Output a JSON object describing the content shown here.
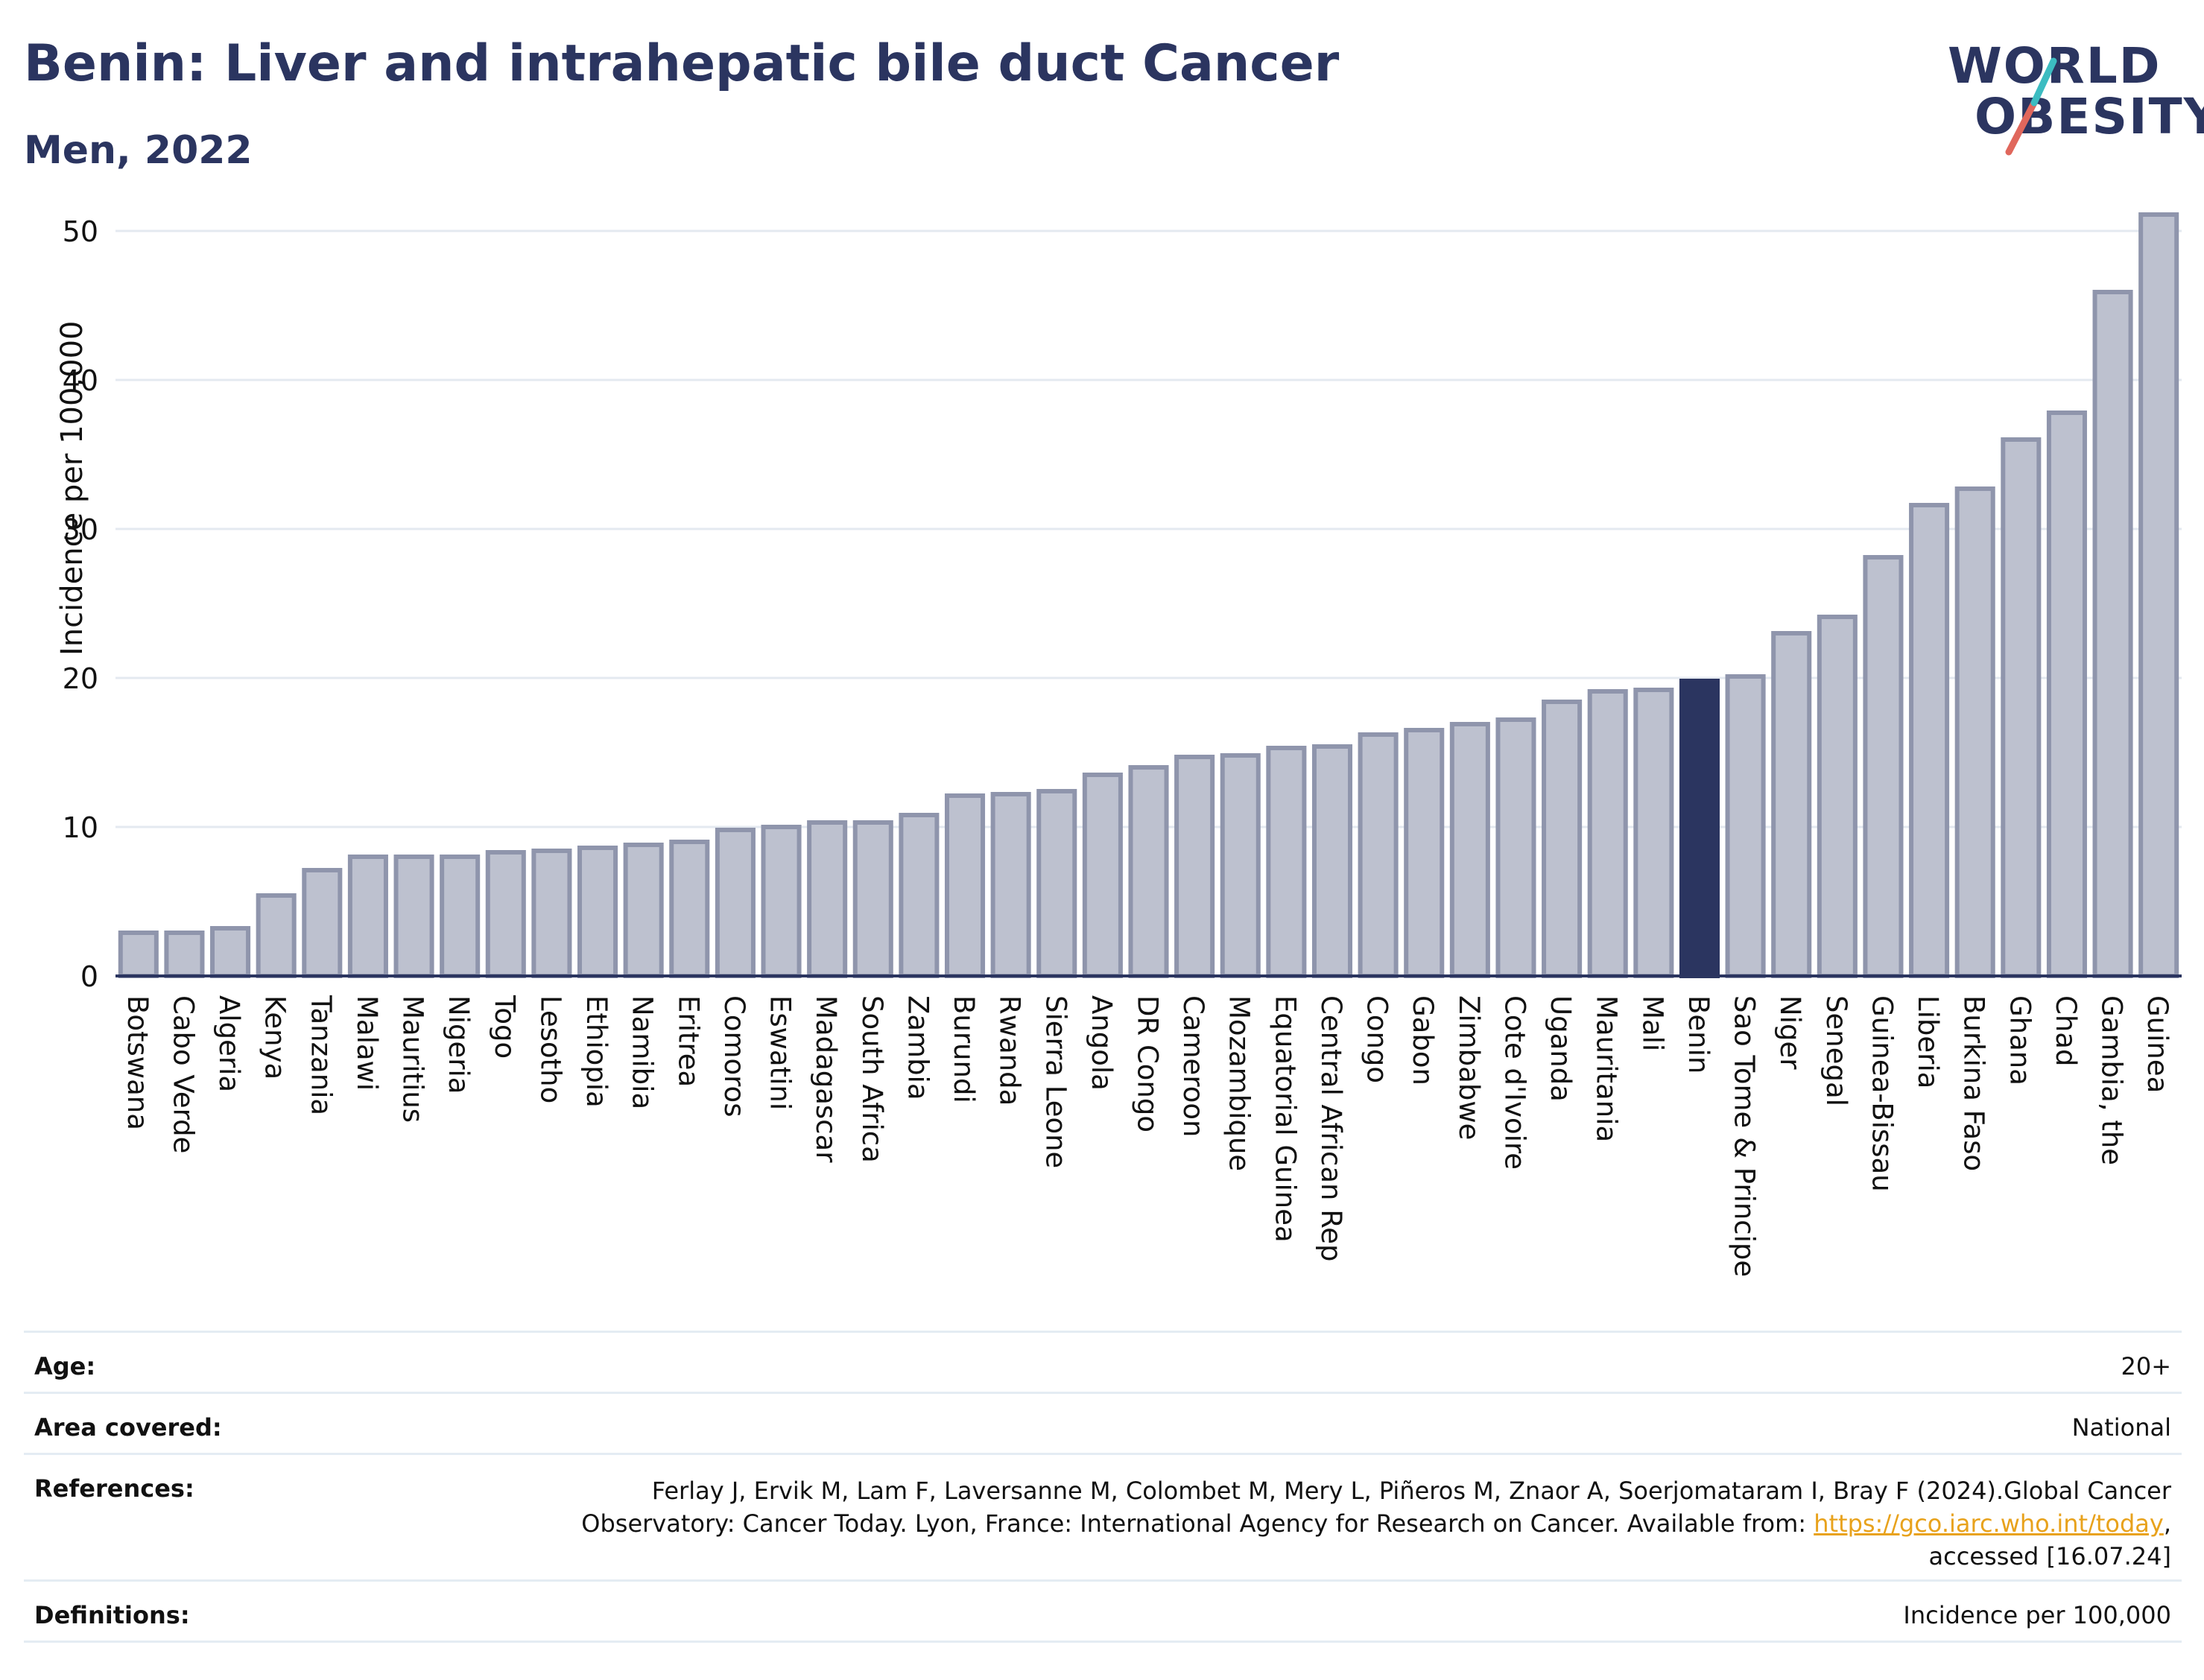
{
  "header": {
    "title": "Benin: Liver and intrahepatic bile duct Cancer",
    "subtitle": "Men, 2022"
  },
  "logo": {
    "line1": "WORLD",
    "line2": "OBESITY",
    "colors": {
      "navy": "#2b3560",
      "teal": "#3cbcc1",
      "coral": "#e0675c"
    }
  },
  "chart_data": {
    "type": "bar",
    "title": "Benin: Liver and intrahepatic bile duct Cancer",
    "subtitle": "Men, 2022",
    "xlabel": "",
    "ylabel": "Incidence per 100,000",
    "ylim": [
      0,
      53
    ],
    "yticks": [
      0,
      10,
      20,
      30,
      40,
      50
    ],
    "grid": true,
    "highlight": "Benin",
    "colors": {
      "bar": "#bdc1cf",
      "bar_edge": "#8f95ac",
      "highlight": "#2b3560",
      "grid": "#e4e9f0"
    },
    "categories": [
      "Botswana",
      "Cabo Verde",
      "Algeria",
      "Kenya",
      "Tanzania",
      "Malawi",
      "Mauritius",
      "Nigeria",
      "Togo",
      "Lesotho",
      "Ethiopia",
      "Namibia",
      "Eritrea",
      "Comoros",
      "Eswatini",
      "Madagascar",
      "South Africa",
      "Zambia",
      "Burundi",
      "Rwanda",
      "Sierra Leone",
      "Angola",
      "DR Congo",
      "Cameroon",
      "Mozambique",
      "Equatorial Guinea",
      "Central African Rep",
      "Congo",
      "Gabon",
      "Zimbabwe",
      "Cote d'Ivoire",
      "Uganda",
      "Mauritania",
      "Mali",
      "Benin",
      "Sao Tome & Principe",
      "Niger",
      "Senegal",
      "Guinea-Bissau",
      "Liberia",
      "Burkina Faso",
      "Ghana",
      "Chad",
      "Gambia, the",
      "Guinea"
    ],
    "values": [
      2.9,
      2.9,
      3.2,
      5.4,
      7.1,
      8.0,
      8.0,
      8.0,
      8.3,
      8.4,
      8.6,
      8.8,
      9.0,
      9.8,
      10.0,
      10.3,
      10.3,
      10.8,
      12.1,
      12.2,
      12.4,
      13.5,
      14.0,
      14.7,
      14.8,
      15.3,
      15.4,
      16.2,
      16.5,
      16.9,
      17.2,
      18.4,
      19.1,
      19.2,
      19.8,
      20.1,
      23.0,
      24.1,
      28.1,
      31.6,
      32.7,
      36.0,
      37.8,
      45.9,
      51.1
    ]
  },
  "info_table": {
    "age_label": "Age:",
    "age_value": "20+",
    "area_label": "Area covered:",
    "area_value": "National",
    "references_label": "References:",
    "references_text": "Ferlay J, Ervik M, Lam F, Laversanne M, Colombet M, Mery L, Piñeros M, Znaor A, Soerjomataram I, Bray F (2024).Global Cancer Observatory: Cancer Today. Lyon, France: International Agency for Research on Cancer. Available from: ",
    "references_link": "https://gco.iarc.who.int/today",
    "references_tail": ", accessed [16.07.24]",
    "definitions_label": "Definitions:",
    "definitions_value": "Incidence per 100,000"
  }
}
